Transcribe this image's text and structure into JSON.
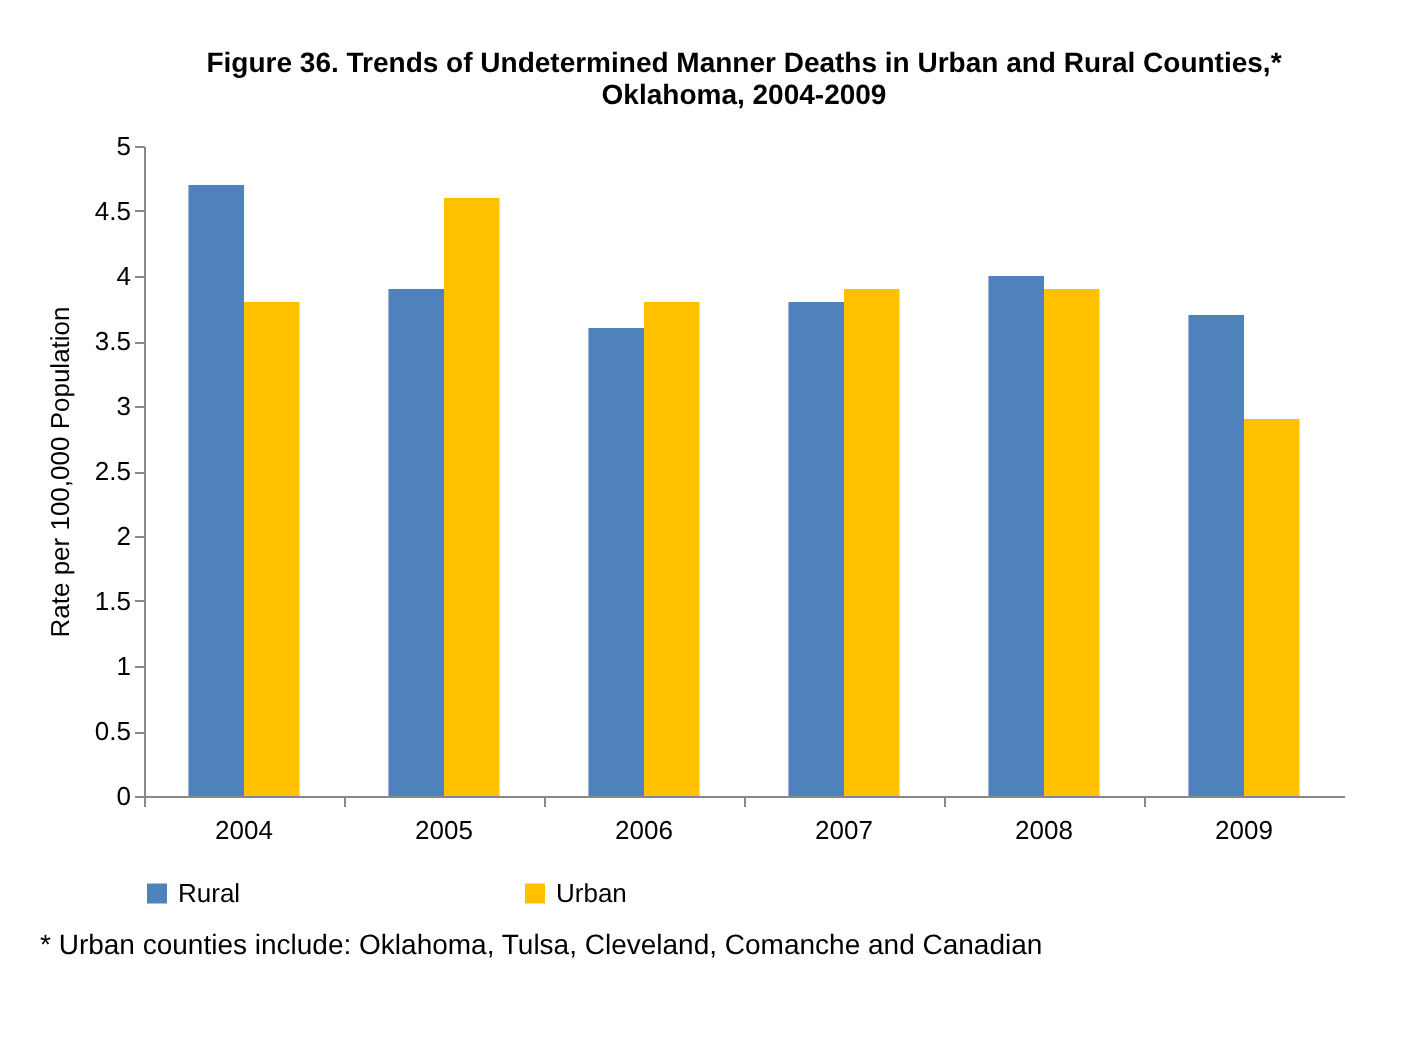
{
  "chart_data": {
    "type": "bar",
    "title": "Figure 36. Trends of Undetermined Manner Deaths in Urban and Rural Counties,*\nOklahoma, 2004-2009",
    "ylabel": "Rate per 100,000 Population",
    "categories": [
      "2004",
      "2005",
      "2006",
      "2007",
      "2008",
      "2009"
    ],
    "series": [
      {
        "name": "Rural",
        "color": "#4f81bd",
        "values": [
          4.7,
          3.9,
          3.6,
          3.8,
          4.0,
          3.7
        ]
      },
      {
        "name": "Urban",
        "color": "#ffc000",
        "values": [
          3.8,
          4.6,
          3.8,
          3.9,
          3.9,
          2.9
        ]
      }
    ],
    "ylim": [
      0,
      5
    ],
    "yticks": [
      0,
      0.5,
      1,
      1.5,
      2,
      2.5,
      3,
      3.5,
      4,
      4.5,
      5
    ],
    "grid": false,
    "legend": "bottom",
    "annotations": [
      "* Urban counties include: Oklahoma, Tulsa, Cleveland, Comanche and Canadian"
    ]
  }
}
